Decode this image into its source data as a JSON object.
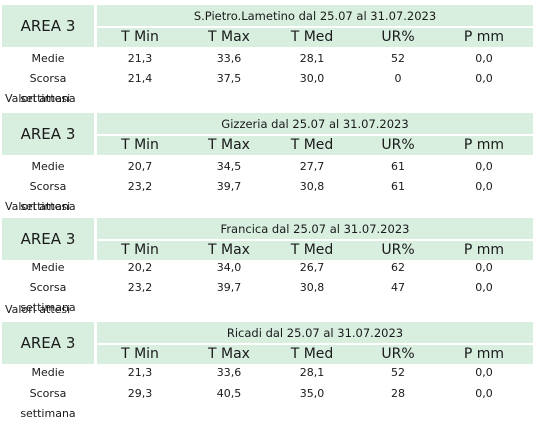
{
  "headers": [
    "T Min",
    "T Max",
    "T Med",
    "UR%",
    "P mm"
  ],
  "row_labels": {
    "medie": "Medie",
    "scorsa": "Scorsa settimana",
    "attesi": "Valori attesi"
  },
  "blocks": [
    {
      "area": "AREA 3",
      "title": "S.Pietro.Lametino dal 25.07 al 31.07.2023",
      "medie": [
        "21,3",
        "33,6",
        "28,1",
        "52",
        "0,0"
      ],
      "scorsa": [
        "21,4",
        "37,5",
        "30,0",
        "0",
        "0,0"
      ]
    },
    {
      "area": "AREA 3",
      "title": "Gizzeria dal 25.07 al 31.07.2023",
      "medie": [
        "20,7",
        "34,5",
        "27,7",
        "61",
        "0,0"
      ],
      "scorsa": [
        "23,2",
        "39,7",
        "30,8",
        "61",
        "0,0"
      ]
    },
    {
      "area": "AREA 3",
      "title": "Francica dal 25.07 al 31.07.2023",
      "medie": [
        "20,2",
        "34,0",
        "26,7",
        "62",
        "0,0"
      ],
      "scorsa": [
        "23,2",
        "39,7",
        "30,8",
        "47",
        "0,0"
      ]
    },
    {
      "area": "AREA 3",
      "title": "Ricadi  dal 25.07 al 31.07.2023",
      "medie": [
        "21,3",
        "33,6",
        "28,1",
        "52",
        "0,0"
      ],
      "scorsa": [
        "29,3",
        "40,5",
        "35,0",
        "28",
        "0,0"
      ]
    }
  ]
}
